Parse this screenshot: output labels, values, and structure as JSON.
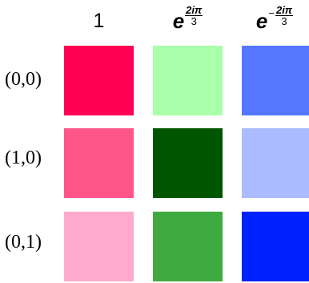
{
  "columns": [
    {
      "label": "1"
    },
    {
      "base": "e",
      "sign": "",
      "numerator": "2iπ",
      "denominator": "3"
    },
    {
      "base": "e",
      "sign": "−",
      "numerator": "2iπ",
      "denominator": "3"
    }
  ],
  "rows": [
    {
      "label": "(0,0)"
    },
    {
      "label": "(1,0)"
    },
    {
      "label": "(0,1)"
    }
  ],
  "grid_colors": [
    [
      "#ff0055",
      "#aaffaa",
      "#5577ff"
    ],
    [
      "#ff5588",
      "#005500",
      "#aabbff"
    ],
    [
      "#ffaacc",
      "#3faa3f",
      "#0022ff"
    ]
  ]
}
